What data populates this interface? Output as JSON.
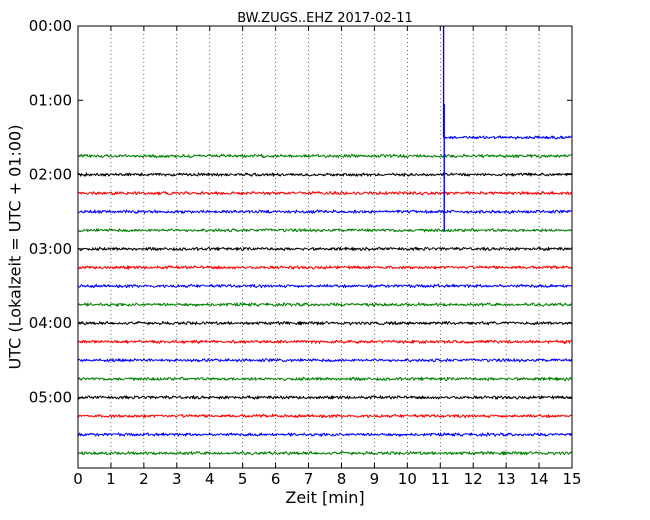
{
  "chart_data": {
    "type": "line",
    "title": "BW.ZUGS..EHZ 2017-02-11",
    "xlabel": "Zeit  [min]",
    "ylabel": "UTC (Lokalzeit = UTC + 01:00)",
    "xlim": [
      0,
      15
    ],
    "xticks": [
      0,
      1,
      2,
      3,
      4,
      5,
      6,
      7,
      8,
      9,
      10,
      11,
      12,
      13,
      14,
      15
    ],
    "ylim_hours": [
      0,
      5.95
    ],
    "y_inverted": true,
    "yticks": [
      {
        "hour": 0,
        "label": "00:00"
      },
      {
        "hour": 1,
        "label": "01:00"
      },
      {
        "hour": 2,
        "label": "02:00"
      },
      {
        "hour": 3,
        "label": "03:00"
      },
      {
        "hour": 4,
        "label": "04:00"
      },
      {
        "hour": 5,
        "label": "05:00"
      }
    ],
    "grid": {
      "x": true,
      "y": false,
      "style": "dotted"
    },
    "colors": {
      "green": "#007f00",
      "black": "#000000",
      "red": "#ff0000",
      "blue": "#0000ff"
    },
    "traces": [
      {
        "start_hour": 1.5,
        "x_start": 11.1,
        "x_end": 15,
        "color": "blue"
      },
      {
        "start_hour": 1.75,
        "x_start": 0,
        "x_end": 15,
        "color": "green"
      },
      {
        "start_hour": 2.0,
        "x_start": 0,
        "x_end": 15,
        "color": "black"
      },
      {
        "start_hour": 2.25,
        "x_start": 0,
        "x_end": 15,
        "color": "red"
      },
      {
        "start_hour": 2.5,
        "x_start": 0,
        "x_end": 15,
        "color": "blue"
      },
      {
        "start_hour": 2.75,
        "x_start": 0,
        "x_end": 15,
        "color": "green"
      },
      {
        "start_hour": 3.0,
        "x_start": 0,
        "x_end": 15,
        "color": "black"
      },
      {
        "start_hour": 3.25,
        "x_start": 0,
        "x_end": 15,
        "color": "red"
      },
      {
        "start_hour": 3.5,
        "x_start": 0,
        "x_end": 15,
        "color": "blue"
      },
      {
        "start_hour": 3.75,
        "x_start": 0,
        "x_end": 15,
        "color": "green"
      },
      {
        "start_hour": 4.0,
        "x_start": 0,
        "x_end": 15,
        "color": "black"
      },
      {
        "start_hour": 4.25,
        "x_start": 0,
        "x_end": 15,
        "color": "red"
      },
      {
        "start_hour": 4.5,
        "x_start": 0,
        "x_end": 15,
        "color": "blue"
      },
      {
        "start_hour": 4.75,
        "x_start": 0,
        "x_end": 15,
        "color": "green"
      },
      {
        "start_hour": 5.0,
        "x_start": 0,
        "x_end": 15,
        "color": "black"
      },
      {
        "start_hour": 5.25,
        "x_start": 0,
        "x_end": 15,
        "color": "red"
      },
      {
        "start_hour": 5.5,
        "x_start": 0,
        "x_end": 15,
        "color": "blue"
      },
      {
        "start_hour": 5.75,
        "x_start": 0,
        "x_end": 15,
        "color": "green"
      }
    ],
    "events": [
      {
        "minute": 11.1,
        "hour_from": 0,
        "hour_to": 1.5,
        "color": "blue"
      },
      {
        "minute": 11.12,
        "hour_from": 1.05,
        "hour_to": 2.75,
        "color": "blue"
      }
    ]
  }
}
